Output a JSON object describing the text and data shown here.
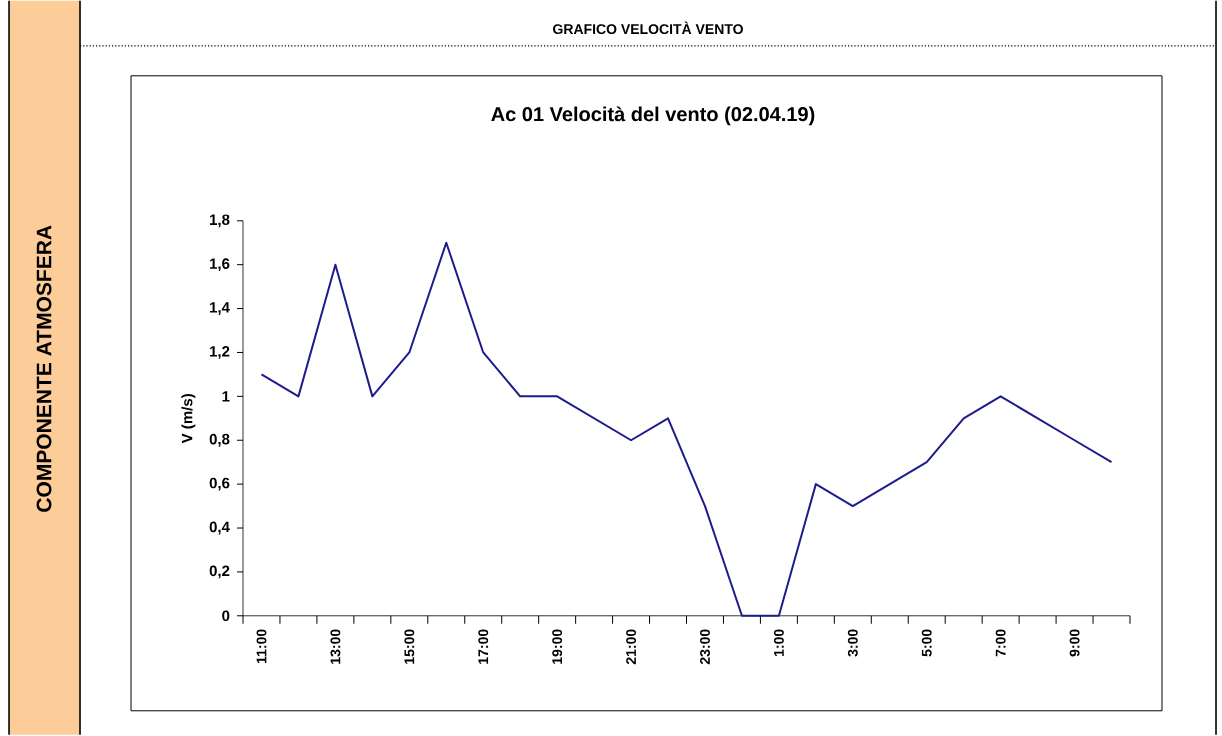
{
  "chart_data": {
    "type": "line",
    "title": "Ac 01 Velocità del vento (02.04.19)",
    "ylabel": "V (m/s)",
    "annotations": [
      "GRAFICO VELOCITÀ VENTO",
      "COMPONENTE ATMOSFERA"
    ],
    "categories": [
      "11:00",
      null,
      "13:00",
      null,
      "15:00",
      null,
      "17:00",
      null,
      "19:00",
      null,
      "21:00",
      null,
      "23:00",
      null,
      "1:00",
      null,
      "3:00",
      null,
      "5:00",
      null,
      "7:00",
      null,
      "9:00",
      null
    ],
    "series": [
      {
        "color": "#1c1c8a",
        "values": [
          1.1,
          1.0,
          1.6,
          1.0,
          1.2,
          1.7,
          1.2,
          1.0,
          1.0,
          0.9,
          0.8,
          0.9,
          0.5,
          0,
          0,
          0.6,
          0.5,
          0.6,
          0.7,
          0.9,
          1.0,
          0.9,
          0.8,
          0.7
        ]
      }
    ],
    "ylim": [
      0,
      1.8
    ],
    "yticks": [
      0,
      {
        "value": 0.2,
        "label": "0,2"
      },
      {
        "value": 0.4,
        "label": "0,4"
      },
      {
        "value": 0.6,
        "label": "0,6"
      },
      {
        "value": 0.8,
        "label": "0,8"
      },
      1,
      {
        "value": 1.2,
        "label": "1,2"
      },
      {
        "value": 1.4,
        "label": "1,4"
      },
      {
        "value": 1.6,
        "label": "1,6"
      },
      {
        "value": 1.8,
        "label": "1,8"
      }
    ],
    "grid": false,
    "marker": "none",
    "line_style": "solid"
  }
}
